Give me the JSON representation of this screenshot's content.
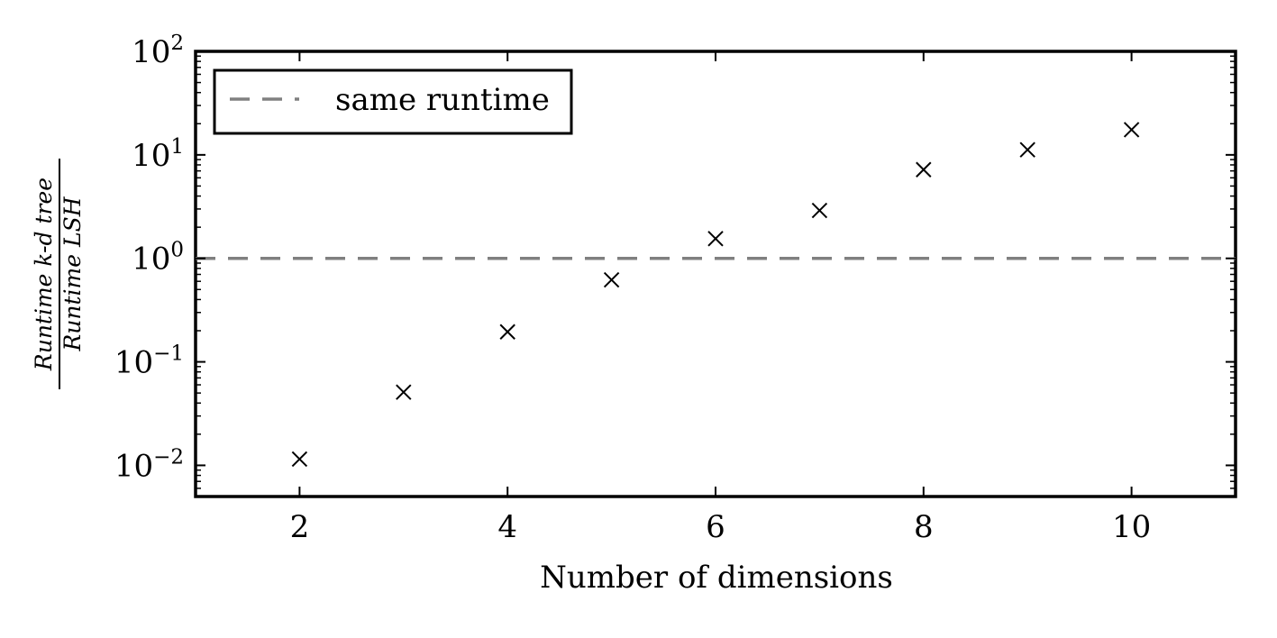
{
  "chart_data": {
    "type": "scatter",
    "xlabel": "Number of dimensions",
    "ylabel_numerator": "Runtime k-d tree",
    "ylabel_denominator": "Runtime LSH",
    "xlim": [
      1,
      11
    ],
    "ylim": [
      0.005,
      100
    ],
    "yscale": "log",
    "xticks": [
      2,
      4,
      6,
      8,
      10
    ],
    "yticks": [
      0.01,
      0.1,
      1,
      10,
      100
    ],
    "ytick_labels": [
      {
        "base": "10",
        "exp": "−2"
      },
      {
        "base": "10",
        "exp": "−1"
      },
      {
        "base": "10",
        "exp": "0"
      },
      {
        "base": "10",
        "exp": "1"
      },
      {
        "base": "10",
        "exp": "2"
      }
    ],
    "grid": false,
    "series": [
      {
        "marker": "x",
        "color": "#000000",
        "x": [
          2,
          3,
          4,
          5,
          6,
          7,
          8,
          9,
          10
        ],
        "y": [
          0.0115,
          0.051,
          0.195,
          0.62,
          1.55,
          2.9,
          7.2,
          11.2,
          17.5
        ]
      }
    ],
    "reference_line": {
      "y": 1,
      "style": "dashed",
      "color": "#808080",
      "label": "same runtime"
    },
    "legend": {
      "placement": "top-left",
      "entries": [
        "same runtime"
      ]
    }
  }
}
